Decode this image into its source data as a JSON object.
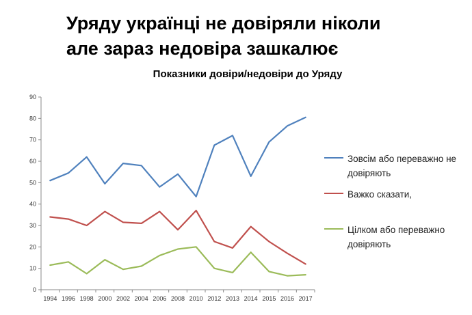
{
  "headline": {
    "line1": "Уряду українці не довіряли ніколи",
    "line2": "але зараз недовіра зашкалює"
  },
  "chart_data": {
    "type": "line",
    "title": "Показники довіри/недовіри до Уряду",
    "categories": [
      "1994",
      "1996",
      "1998",
      "2000",
      "2002",
      "2004",
      "2006",
      "2008",
      "2010",
      "2012",
      "2013",
      "2014",
      "2015",
      "2016",
      "2017"
    ],
    "ylim": [
      0,
      90
    ],
    "yticks": [
      0,
      10,
      20,
      30,
      40,
      50,
      60,
      70,
      80,
      90
    ],
    "grid": false,
    "legend_position": "right",
    "series": [
      {
        "name": "Зовсім або переважно не довіряють",
        "color": "#4f81bd",
        "values": [
          51,
          54.5,
          62,
          49.5,
          59,
          58,
          48,
          54,
          43.5,
          67.5,
          72,
          53,
          69,
          76.5,
          80.5
        ]
      },
      {
        "name": "Важко сказати,",
        "color": "#c0504d",
        "values": [
          34,
          33,
          30,
          36.5,
          31.5,
          31,
          36.5,
          28,
          37,
          22.5,
          19.5,
          29.5,
          22.5,
          17,
          12
        ]
      },
      {
        "name": "Цілком або переважно довіряють",
        "color": "#9bbb59",
        "values": [
          11.5,
          13,
          7.5,
          14,
          9.5,
          11,
          16,
          19,
          20,
          10,
          8,
          17.5,
          8.5,
          6.5,
          7
        ]
      }
    ]
  }
}
